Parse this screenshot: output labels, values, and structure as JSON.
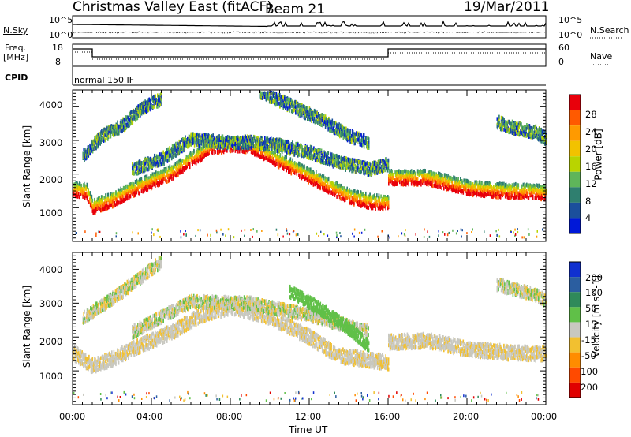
{
  "header": {
    "title": "Christmas Valley East (fitACF)",
    "beam": "Beam 21",
    "date": "19/Mar/2011"
  },
  "top_panels": {
    "nsky_label": "N.Sky",
    "nsearch_label": "N.Search",
    "nsky_ticks": [
      "10^5",
      "10^0"
    ],
    "nsky_right_ticks": [
      "10^5",
      "10^0"
    ],
    "freq_label": "Freq.",
    "freq_unit": "[MHz]",
    "freq_ticks": [
      "18",
      "8"
    ],
    "nave_label": "Nave",
    "nave_ticks": [
      "60",
      "0"
    ],
    "cpid_label": "CPID",
    "cpid_value": "normal 150 IF"
  },
  "x_axis": {
    "label": "Time UT",
    "ticks": [
      "00:00",
      "04:00",
      "08:00",
      "12:00",
      "16:00",
      "20:00",
      "00:00"
    ]
  },
  "power_panel": {
    "ylabel": "Slant Range [km]",
    "yticks": [
      "4000",
      "3000",
      "2000",
      "1000"
    ],
    "colorbar_label": "Power [dB]",
    "colorbar_ticks": [
      "28",
      "24",
      "20",
      "16",
      "12",
      "8",
      "4"
    ],
    "colors": [
      "#e8000b",
      "#ff5a00",
      "#ff9a00",
      "#f2c200",
      "#b9d400",
      "#5fb55a",
      "#2f7f6f",
      "#1b4f9c",
      "#0018d8"
    ]
  },
  "velocity_panel": {
    "ylabel": "Slant Range [km]",
    "yticks": [
      "4000",
      "3000",
      "2000",
      "1000"
    ],
    "colorbar_label": "Velocity [m s^-1]",
    "colorbar_ticks": [
      "200",
      "100",
      "50",
      "15",
      "-15",
      "-50",
      "-100",
      "-200"
    ],
    "colors": [
      "#1030d0",
      "#2b5ea0",
      "#2f8a5a",
      "#60c048",
      "#c8c8c0",
      "#f2c030",
      "#ff8c00",
      "#ff4a00",
      "#e00000"
    ]
  },
  "chart_data": [
    {
      "type": "heatmap",
      "name": "Power",
      "x_unit": "hours UT",
      "x_range": [
        0,
        24
      ],
      "y_unit": "km",
      "y_range": [
        0,
        4500
      ],
      "ylabel": "Slant Range [km]",
      "xlabel": "Time UT",
      "z_label": "Power [dB]",
      "z_range": [
        0,
        30
      ],
      "features": [
        {
          "kind": "band",
          "points": [
            [
              0.0,
              1600
            ],
            [
              0.7,
              1550
            ],
            [
              1.0,
              1100
            ],
            [
              2.0,
              1300
            ],
            [
              3.0,
              1600
            ],
            [
              4.0,
              1850
            ],
            [
              5.0,
              2100
            ],
            [
              6.0,
              2500
            ],
            [
              7.0,
              2850
            ],
            [
              8.0,
              2950
            ],
            [
              9.0,
              2900
            ],
            [
              10.0,
              2600
            ],
            [
              11.0,
              2300
            ],
            [
              12.0,
              2000
            ],
            [
              13.0,
              1700
            ],
            [
              14.0,
              1400
            ],
            [
              15.0,
              1250
            ],
            [
              16.0,
              1200
            ]
          ]
        },
        {
          "kind": "band",
          "points": [
            [
              16.0,
              1950
            ],
            [
              18.0,
              1950
            ],
            [
              19.0,
              1800
            ],
            [
              20.0,
              1650
            ],
            [
              21.0,
              1600
            ],
            [
              22.0,
              1550
            ],
            [
              23.0,
              1550
            ],
            [
              24.0,
              1500
            ]
          ]
        },
        {
          "kind": "band",
          "points": [
            [
              0.5,
              2600
            ],
            [
              1.5,
              3200
            ],
            [
              2.5,
              3500
            ],
            [
              3.5,
              4000
            ],
            [
              4.5,
              4300
            ]
          ]
        },
        {
          "kind": "band",
          "points": [
            [
              3.0,
              2200
            ],
            [
              4.5,
              2500
            ],
            [
              6.0,
              3100
            ],
            [
              7.5,
              3000
            ],
            [
              9.0,
              3000
            ],
            [
              10.5,
              2900
            ],
            [
              12.0,
              2700
            ],
            [
              13.5,
              2400
            ],
            [
              15.0,
              2200
            ],
            [
              16.0,
              2350
            ]
          ]
        },
        {
          "kind": "band",
          "points": [
            [
              9.5,
              4500
            ],
            [
              11.0,
              4100
            ],
            [
              12.5,
              3700
            ],
            [
              14.0,
              3200
            ],
            [
              15.0,
              3000
            ]
          ]
        },
        {
          "kind": "band",
          "points": [
            [
              21.5,
              3600
            ],
            [
              22.5,
              3400
            ],
            [
              23.5,
              3300
            ],
            [
              24.0,
              3100
            ]
          ]
        }
      ]
    },
    {
      "type": "heatmap",
      "name": "Velocity",
      "x_unit": "hours UT",
      "x_range": [
        0,
        24
      ],
      "y_unit": "km",
      "y_range": [
        0,
        4500
      ],
      "ylabel": "Slant Range [km]",
      "xlabel": "Time UT",
      "z_label": "Velocity [m s^-1]",
      "z_range": [
        -200,
        200
      ],
      "features": [
        {
          "kind": "band",
          "points": [
            [
              0.0,
              1600
            ],
            [
              1.0,
              1200
            ],
            [
              2.0,
              1400
            ],
            [
              3.0,
              1700
            ],
            [
              5.0,
              2200
            ],
            [
              6.5,
              2700
            ],
            [
              8.0,
              2950
            ],
            [
              10.0,
              2650
            ],
            [
              12.0,
              2050
            ],
            [
              13.5,
              1500
            ],
            [
              16.0,
              1300
            ]
          ]
        },
        {
          "kind": "band",
          "points": [
            [
              16.0,
              1900
            ],
            [
              18.0,
              1950
            ],
            [
              20.0,
              1700
            ],
            [
              22.0,
              1600
            ],
            [
              24.0,
              1550
            ]
          ]
        },
        {
          "kind": "band",
          "points": [
            [
              0.5,
              2600
            ],
            [
              2.5,
              3400
            ],
            [
              4.5,
              4300
            ]
          ]
        },
        {
          "kind": "band",
          "points": [
            [
              3.0,
              2200
            ],
            [
              6.0,
              3100
            ],
            [
              9.0,
              3050
            ],
            [
              12.0,
              2700
            ],
            [
              15.0,
              2200
            ]
          ]
        },
        {
          "kind": "band",
          "points": [
            [
              11.0,
              3400
            ],
            [
              12.5,
              2900
            ],
            [
              14.0,
              2300
            ],
            [
              15.0,
              1800
            ]
          ]
        },
        {
          "kind": "band",
          "points": [
            [
              21.5,
              3600
            ],
            [
              23.5,
              3300
            ],
            [
              24.0,
              3100
            ]
          ]
        }
      ]
    }
  ]
}
